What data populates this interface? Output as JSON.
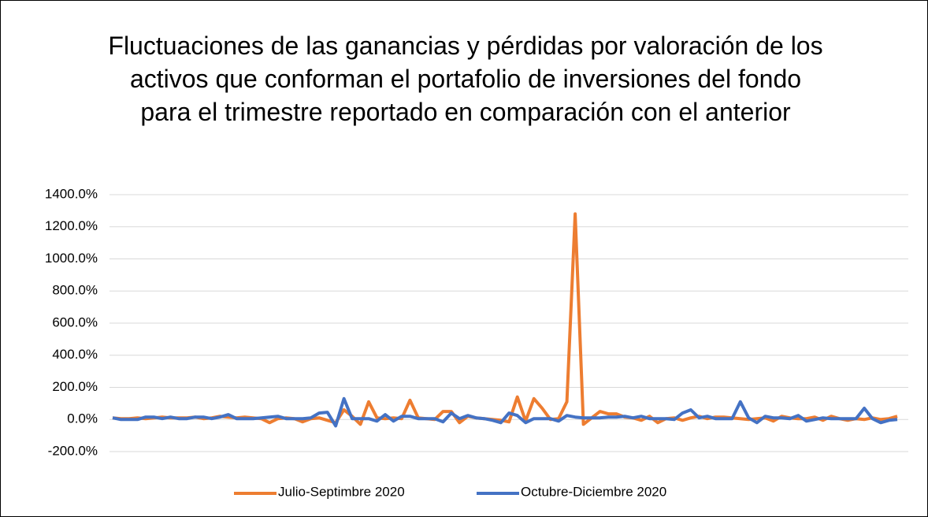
{
  "chart_data": {
    "type": "line",
    "title": "Fluctuaciones de las ganancias y pérdidas por valoración de los activos que conforman el portafolio de inversiones del fondo para el trimestre reportado en comparación con el anterior",
    "series": [
      {
        "name": "Julio-Septimbre 2020",
        "color": "#ed7d31",
        "values": [
          10,
          5,
          5,
          10,
          5,
          10,
          15,
          10,
          10,
          10,
          15,
          5,
          10,
          20,
          15,
          10,
          15,
          10,
          5,
          -20,
          5,
          10,
          5,
          -15,
          5,
          10,
          -5,
          -20,
          60,
          20,
          -30,
          110,
          10,
          5,
          10,
          5,
          120,
          10,
          5,
          0,
          50,
          50,
          -20,
          20,
          10,
          5,
          0,
          -5,
          -15,
          140,
          -10,
          130,
          70,
          0,
          5,
          110,
          1280,
          -30,
          10,
          50,
          35,
          35,
          15,
          10,
          -5,
          20,
          -20,
          5,
          10,
          -5,
          10,
          20,
          5,
          15,
          15,
          10,
          5,
          0,
          5,
          10,
          -10,
          20,
          10,
          5,
          5,
          15,
          -5,
          20,
          5,
          -5,
          5,
          0,
          10,
          0,
          5,
          20
        ]
      },
      {
        "name": "Octubre-Diciembre 2020",
        "color": "#4472c4",
        "values": [
          10,
          0,
          0,
          0,
          15,
          15,
          5,
          15,
          5,
          5,
          15,
          15,
          5,
          15,
          30,
          5,
          5,
          5,
          10,
          15,
          20,
          5,
          5,
          5,
          10,
          40,
          45,
          -40,
          130,
          5,
          5,
          5,
          -10,
          30,
          -10,
          20,
          20,
          5,
          5,
          5,
          -15,
          40,
          5,
          25,
          10,
          5,
          -5,
          -20,
          40,
          25,
          -20,
          5,
          5,
          5,
          -10,
          25,
          15,
          10,
          10,
          10,
          15,
          15,
          20,
          10,
          20,
          5,
          5,
          5,
          0,
          40,
          60,
          10,
          20,
          5,
          5,
          5,
          110,
          10,
          -20,
          20,
          10,
          10,
          5,
          25,
          -10,
          0,
          10,
          5,
          5,
          5,
          5,
          70,
          5,
          -20,
          -5,
          0
        ]
      }
    ],
    "ylim": [
      -200,
      1400
    ],
    "yticks": [
      {
        "value": -200,
        "label": "-200.0%"
      },
      {
        "value": 0,
        "label": "0.0%"
      },
      {
        "value": 200,
        "label": "200.0%"
      },
      {
        "value": 400,
        "label": "400.0%"
      },
      {
        "value": 600,
        "label": "600.0%"
      },
      {
        "value": 800,
        "label": "800.0%"
      },
      {
        "value": 1000,
        "label": "1000.0%"
      },
      {
        "value": 1200,
        "label": "1200.0%"
      },
      {
        "value": 1400,
        "label": "1400.0%"
      }
    ],
    "grid": true,
    "legend": "bottom"
  }
}
